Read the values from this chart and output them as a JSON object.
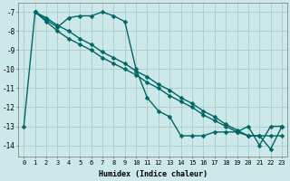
{
  "title": "",
  "xlabel": "Humidex (Indice chaleur)",
  "bg_color": "#cce8e8",
  "grid_color": "#aacccc",
  "line_color": "#006666",
  "markersize": 2.5,
  "linewidth": 1.0,
  "xlim": [
    -0.5,
    23.5
  ],
  "ylim": [
    -14.6,
    -6.5
  ],
  "yticks": [
    -7,
    -8,
    -9,
    -10,
    -11,
    -12,
    -13,
    -14
  ],
  "xticks": [
    0,
    1,
    2,
    3,
    4,
    5,
    6,
    7,
    8,
    9,
    10,
    11,
    12,
    13,
    14,
    15,
    16,
    17,
    18,
    19,
    20,
    21,
    22,
    23
  ],
  "series": [
    {
      "x": [
        0,
        1,
        2,
        3,
        4,
        5,
        6,
        7,
        8,
        9,
        10,
        11,
        12,
        13,
        14,
        15,
        16,
        17,
        18,
        19,
        20,
        21,
        22,
        23
      ],
      "y": [
        -13,
        -7,
        -7.4,
        -7.8,
        -7.3,
        -7.2,
        -7.2,
        -7.0,
        -7.2,
        -7.5,
        -10.0,
        -11.5,
        -12.2,
        -12.5,
        -13.5,
        -13.5,
        -13.5,
        -13.3,
        -13.3,
        -13.3,
        -13.0,
        -14.0,
        -13.0,
        -13.0
      ]
    },
    {
      "x": [
        1,
        2,
        3,
        4,
        5,
        6,
        7,
        8,
        9,
        10,
        11,
        12,
        13,
        14,
        15,
        16,
        17,
        18,
        19,
        20,
        21,
        22,
        23
      ],
      "y": [
        -7,
        -7.5,
        -8.0,
        -8.4,
        -8.7,
        -9.0,
        -9.4,
        -9.7,
        -10.0,
        -10.3,
        -10.7,
        -11.0,
        -11.4,
        -11.7,
        -12.0,
        -12.4,
        -12.7,
        -13.0,
        -13.3,
        -13.5,
        -13.5,
        -13.5,
        -13.5
      ]
    },
    {
      "x": [
        1,
        2,
        3,
        4,
        5,
        6,
        7,
        8,
        9,
        10,
        11,
        12,
        13,
        14,
        15,
        16,
        17,
        18,
        19,
        20,
        21,
        22,
        23
      ],
      "y": [
        -7,
        -7.3,
        -7.7,
        -8.0,
        -8.4,
        -8.7,
        -9.1,
        -9.4,
        -9.7,
        -10.1,
        -10.4,
        -10.8,
        -11.1,
        -11.5,
        -11.8,
        -12.2,
        -12.5,
        -12.9,
        -13.2,
        -13.5,
        -13.5,
        -14.2,
        -13.0
      ]
    }
  ]
}
